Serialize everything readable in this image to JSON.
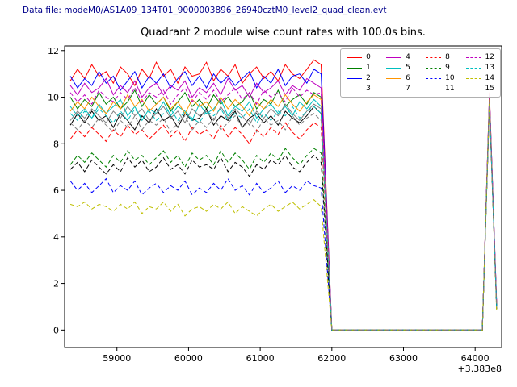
{
  "figure": {
    "data_file_label": "Data file: modeM0/AS1A09_134T01_9000003896_26940cztM0_level2_quad_clean.evt"
  },
  "chart_data": {
    "type": "line",
    "title": "Quadrant 2 module wise count rates with 100.0s bins.",
    "xlabel": "",
    "ylabel": "",
    "x_offset_text": "+3.383e8",
    "xlim": [
      58270,
      64370
    ],
    "ylim": [
      -0.75,
      12.2
    ],
    "xticks": [
      59000,
      60000,
      61000,
      62000,
      63000,
      64000
    ],
    "yticks": [
      0,
      2,
      4,
      6,
      8,
      10,
      12
    ],
    "legend": {
      "location": "upper right",
      "columns": 4
    },
    "x": [
      58350,
      58450,
      58550,
      58650,
      58750,
      58850,
      58950,
      59050,
      59150,
      59250,
      59350,
      59450,
      59550,
      59650,
      59750,
      59850,
      59950,
      60050,
      60150,
      60250,
      60350,
      60450,
      60550,
      60650,
      60750,
      60850,
      60950,
      61050,
      61150,
      61250,
      61350,
      61450,
      61550,
      61650,
      61750,
      61850,
      62000,
      64100,
      64200,
      64300
    ],
    "series": [
      {
        "name": "0",
        "color": "#ff0000",
        "dash": false,
        "values": [
          10.7,
          11.2,
          10.8,
          11.4,
          10.9,
          11.1,
          10.6,
          11.3,
          11.0,
          10.5,
          11.2,
          10.8,
          11.5,
          10.9,
          11.2,
          10.6,
          11.3,
          10.9,
          11.0,
          11.5,
          10.7,
          11.2,
          10.9,
          11.4,
          10.6,
          11.0,
          11.3,
          10.8,
          11.1,
          10.7,
          11.4,
          11.0,
          10.8,
          11.2,
          11.6,
          11.4,
          0,
          0,
          10.2,
          1.1
        ]
      },
      {
        "name": "1",
        "color": "#008000",
        "dash": false,
        "values": [
          10.0,
          9.5,
          9.9,
          9.6,
          10.2,
          9.7,
          10.0,
          9.5,
          9.8,
          10.3,
          9.6,
          10.1,
          9.7,
          10.0,
          9.4,
          9.8,
          10.2,
          9.6,
          9.9,
          9.5,
          10.1,
          9.7,
          10.0,
          9.6,
          9.8,
          10.2,
          9.5,
          9.9,
          9.7,
          10.3,
          9.6,
          9.9,
          10.1,
          9.7,
          10.2,
          10.0,
          0,
          0,
          9.9,
          1.0
        ]
      },
      {
        "name": "2",
        "color": "#0000ff",
        "dash": false,
        "values": [
          10.9,
          10.4,
          10.8,
          10.5,
          11.1,
          10.6,
          10.9,
          10.3,
          10.7,
          11.1,
          10.4,
          10.9,
          10.6,
          11.0,
          10.4,
          10.8,
          11.1,
          10.5,
          10.9,
          10.4,
          11.0,
          10.6,
          10.9,
          10.5,
          10.8,
          11.1,
          10.4,
          10.9,
          10.6,
          11.2,
          10.5,
          10.9,
          11.0,
          10.6,
          11.2,
          11.0,
          0,
          0,
          10.1,
          1.2
        ]
      },
      {
        "name": "3",
        "color": "#000000",
        "dash": false,
        "values": [
          8.8,
          9.3,
          8.9,
          9.4,
          9.0,
          9.2,
          8.7,
          9.3,
          9.0,
          8.6,
          9.2,
          8.9,
          9.5,
          9.0,
          9.2,
          8.7,
          9.3,
          9.0,
          9.1,
          9.5,
          8.8,
          9.2,
          9.0,
          9.4,
          8.7,
          9.1,
          9.3,
          8.9,
          9.2,
          8.8,
          9.4,
          9.1,
          8.9,
          9.2,
          9.6,
          9.3,
          0,
          0,
          9.8,
          1.0
        ]
      },
      {
        "name": "4",
        "color": "#bf00bf",
        "dash": false,
        "values": [
          10.5,
          10.1,
          10.6,
          10.2,
          10.4,
          10.8,
          10.1,
          10.5,
          10.2,
          10.7,
          10.0,
          10.4,
          10.6,
          10.1,
          10.5,
          10.3,
          10.7,
          10.0,
          10.4,
          10.2,
          10.6,
          10.1,
          10.8,
          10.3,
          10.5,
          10.0,
          10.6,
          10.2,
          10.4,
          10.7,
          10.1,
          10.5,
          10.3,
          10.8,
          10.6,
          10.4,
          0,
          0,
          10.0,
          1.1
        ]
      },
      {
        "name": "5",
        "color": "#00bfbf",
        "dash": false,
        "values": [
          9.6,
          9.2,
          9.5,
          9.1,
          9.7,
          9.3,
          9.6,
          9.9,
          9.2,
          9.6,
          9.0,
          9.5,
          9.3,
          9.8,
          9.2,
          9.6,
          9.4,
          9.0,
          9.7,
          9.3,
          9.5,
          9.9,
          9.2,
          9.6,
          9.4,
          9.8,
          9.1,
          9.5,
          9.7,
          9.3,
          9.6,
          9.2,
          9.8,
          9.5,
          9.9,
          9.6,
          0,
          0,
          9.9,
          1.0
        ]
      },
      {
        "name": "6",
        "color": "#ff9500",
        "dash": false,
        "values": [
          9.4,
          9.8,
          9.5,
          10.0,
          9.6,
          9.3,
          9.8,
          9.5,
          10.1,
          9.6,
          9.9,
          9.4,
          9.7,
          10.0,
          9.5,
          9.8,
          9.3,
          9.9,
          9.6,
          9.8,
          9.4,
          10.0,
          9.5,
          9.9,
          9.6,
          9.2,
          9.8,
          9.5,
          9.9,
          9.6,
          10.1,
          9.7,
          9.4,
          9.8,
          10.1,
          9.9,
          0,
          0,
          10.0,
          1.1
        ]
      },
      {
        "name": "7",
        "color": "#7f7f7f",
        "dash": false,
        "values": [
          9.0,
          9.4,
          9.1,
          9.5,
          9.2,
          8.9,
          9.4,
          9.1,
          9.6,
          9.2,
          9.5,
          9.0,
          9.3,
          9.6,
          9.1,
          9.4,
          8.9,
          9.5,
          9.2,
          9.4,
          9.0,
          9.6,
          9.1,
          9.5,
          9.2,
          8.8,
          9.4,
          9.1,
          9.5,
          9.2,
          9.7,
          9.3,
          9.0,
          9.4,
          9.7,
          9.5,
          0,
          0,
          9.8,
          0.9
        ]
      },
      {
        "name": "8",
        "color": "#ff0000",
        "dash": true,
        "values": [
          8.2,
          8.6,
          8.3,
          8.7,
          8.4,
          8.1,
          8.6,
          8.3,
          8.8,
          8.4,
          8.6,
          8.2,
          8.5,
          8.8,
          8.3,
          8.6,
          8.1,
          8.7,
          8.4,
          8.6,
          8.2,
          8.8,
          8.3,
          8.7,
          8.4,
          8.0,
          8.6,
          8.3,
          8.7,
          8.4,
          8.9,
          8.5,
          8.2,
          8.6,
          8.9,
          8.7,
          0,
          0,
          9.9,
          1.0
        ]
      },
      {
        "name": "9",
        "color": "#008000",
        "dash": true,
        "values": [
          7.1,
          7.5,
          7.2,
          7.6,
          7.3,
          7.0,
          7.5,
          7.2,
          7.7,
          7.3,
          7.5,
          7.1,
          7.4,
          7.7,
          7.2,
          7.5,
          7.0,
          7.6,
          7.3,
          7.5,
          7.1,
          7.7,
          7.2,
          7.6,
          7.3,
          6.9,
          7.5,
          7.2,
          7.6,
          7.3,
          7.8,
          7.4,
          7.1,
          7.5,
          7.8,
          7.6,
          0,
          0,
          9.8,
          1.0
        ]
      },
      {
        "name": "10",
        "color": "#0000ff",
        "dash": true,
        "values": [
          6.4,
          6.0,
          6.3,
          5.9,
          6.2,
          6.5,
          5.9,
          6.2,
          6.0,
          6.4,
          5.8,
          6.1,
          6.3,
          5.9,
          6.2,
          6.0,
          6.4,
          5.8,
          6.1,
          5.9,
          6.3,
          6.0,
          6.5,
          6.0,
          6.2,
          5.8,
          6.3,
          5.9,
          6.1,
          6.4,
          5.9,
          6.2,
          6.0,
          6.4,
          6.2,
          6.1,
          0,
          0,
          9.9,
          1.0
        ]
      },
      {
        "name": "11",
        "color": "#000000",
        "dash": true,
        "values": [
          6.9,
          7.2,
          6.8,
          7.3,
          7.0,
          6.7,
          7.1,
          6.8,
          7.4,
          7.0,
          7.3,
          6.8,
          7.0,
          7.4,
          6.9,
          7.1,
          6.7,
          7.3,
          7.0,
          7.1,
          6.9,
          7.4,
          6.8,
          7.2,
          7.0,
          6.6,
          7.1,
          6.9,
          7.3,
          7.1,
          7.5,
          7.0,
          6.8,
          7.2,
          7.5,
          7.2,
          0,
          0,
          9.7,
          0.9
        ]
      },
      {
        "name": "12",
        "color": "#bf00bf",
        "dash": true,
        "values": [
          10.2,
          9.8,
          10.1,
          9.7,
          10.3,
          10.0,
          9.8,
          10.2,
          9.9,
          10.4,
          9.8,
          10.2,
          10.0,
          10.3,
          9.7,
          10.1,
          10.4,
          9.8,
          10.2,
          9.9,
          10.3,
          9.8,
          10.1,
          10.4,
          9.9,
          10.2,
          9.7,
          10.3,
          10.0,
          10.2,
          9.8,
          10.4,
          10.0,
          10.3,
          10.1,
          10.2,
          0,
          0,
          10.1,
          1.1
        ]
      },
      {
        "name": "13",
        "color": "#00bfbf",
        "dash": true,
        "values": [
          9.3,
          9.0,
          9.4,
          9.1,
          9.5,
          9.2,
          8.9,
          9.4,
          9.0,
          9.5,
          9.1,
          9.4,
          9.0,
          9.3,
          9.5,
          9.0,
          9.4,
          9.1,
          8.9,
          9.4,
          9.2,
          9.5,
          9.0,
          9.3,
          9.1,
          9.5,
          8.9,
          9.3,
          9.0,
          9.4,
          9.2,
          9.6,
          9.1,
          9.4,
          9.6,
          9.3,
          0,
          0,
          9.8,
          1.0
        ]
      },
      {
        "name": "14",
        "color": "#bfbf00",
        "dash": true,
        "values": [
          5.4,
          5.3,
          5.5,
          5.2,
          5.4,
          5.3,
          5.1,
          5.4,
          5.2,
          5.5,
          5.0,
          5.3,
          5.2,
          5.5,
          5.1,
          5.4,
          4.9,
          5.2,
          5.3,
          5.1,
          5.4,
          5.2,
          5.5,
          5.0,
          5.3,
          5.1,
          4.9,
          5.2,
          5.4,
          5.1,
          5.3,
          5.5,
          5.2,
          5.4,
          5.6,
          5.3,
          0,
          0,
          9.9,
          0.8
        ]
      },
      {
        "name": "15",
        "color": "#7f7f7f",
        "dash": true,
        "values": [
          8.9,
          8.6,
          9.0,
          8.7,
          9.1,
          8.8,
          8.5,
          9.0,
          8.7,
          9.2,
          8.6,
          9.0,
          8.8,
          9.1,
          8.5,
          8.9,
          9.2,
          8.6,
          9.0,
          8.7,
          9.1,
          8.6,
          8.9,
          9.2,
          8.7,
          9.0,
          8.5,
          9.1,
          8.8,
          9.0,
          8.6,
          9.2,
          8.8,
          9.1,
          9.3,
          9.0,
          0,
          0,
          9.8,
          1.0
        ]
      }
    ]
  }
}
